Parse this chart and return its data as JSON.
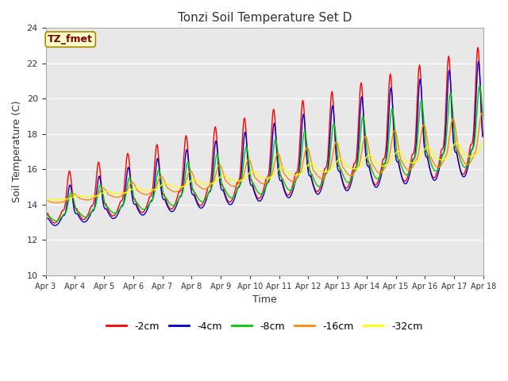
{
  "title": "Tonzi Soil Temperature Set D",
  "xlabel": "Time",
  "ylabel": "Soil Temperature (C)",
  "ylim": [
    10,
    24
  ],
  "annotation": "TZ_fmet",
  "fig_bg": "#ffffff",
  "plot_bg": "#e8e8e8",
  "series_colors": [
    "#ff0000",
    "#0000cc",
    "#00cc00",
    "#ff8800",
    "#ffff00"
  ],
  "series_labels": [
    "-2cm",
    "-4cm",
    "-8cm",
    "-16cm",
    "-32cm"
  ],
  "tick_labels": [
    "Apr 3",
    "Apr 4",
    "Apr 5",
    "Apr 6",
    "Apr 7",
    "Apr 8",
    "Apr 9",
    "Apr 10",
    "Apr 11",
    "Apr 12",
    "Apr 13",
    "Apr 14",
    "Apr 15",
    "Apr 16",
    "Apr 17",
    "Apr 18"
  ],
  "n_halfhour": 720,
  "days": 15
}
